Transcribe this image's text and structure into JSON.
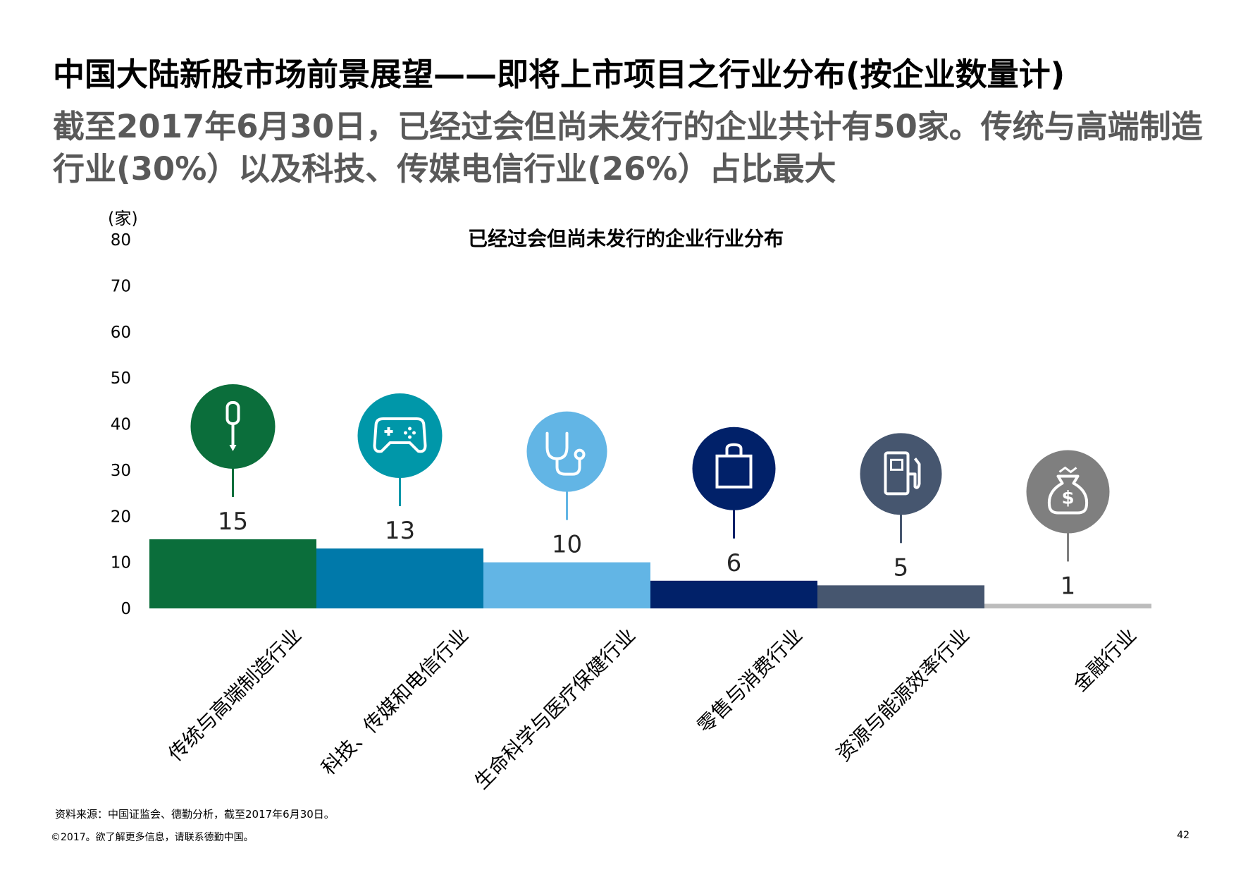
{
  "header": {
    "title": "中国大陆新股市场前景展望——即将上市项目之行业分布(按企业数量计)",
    "subtitle": "截至2017年6月30日，已经过会但尚未发行的企业共计有50家。传统与高端制造行业(30%）以及科技、传媒电信行业(26%）占比最大"
  },
  "chart_data": {
    "type": "bar",
    "title": "已经过会但尚未发行的企业行业分布",
    "ylabel": "(家)",
    "ylim": [
      0,
      80
    ],
    "yticks": [
      0,
      10,
      20,
      30,
      40,
      50,
      60,
      70,
      80
    ],
    "categories": [
      "传统与高端制造行业",
      "科技、传媒和电信行业",
      "生命科学与医疗保健行业",
      "零售与消费行业",
      "资源与能源效率行业",
      "金融行业"
    ],
    "values": [
      15,
      13,
      10,
      6,
      5,
      1
    ],
    "colors": [
      "#0b6e3b",
      "#0079aa",
      "#62b5e5",
      "#012169",
      "#46566f",
      "#bcbcbc"
    ],
    "icon_colors": [
      "#0b6e3b",
      "#0097a9",
      "#62b5e5",
      "#012169",
      "#46566f",
      "#7f7f7f"
    ],
    "icons": [
      "screwdriver-icon",
      "gamepad-icon",
      "stethoscope-icon",
      "shopping-bag-icon",
      "fuel-pump-icon",
      "money-bag-icon"
    ],
    "grid": false
  },
  "footer": {
    "source": "资料来源：中国证监会、德勤分析，截至2017年6月30日。",
    "copyright": "©2017。欲了解更多信息，请联系德勤中国。",
    "page": "42"
  }
}
